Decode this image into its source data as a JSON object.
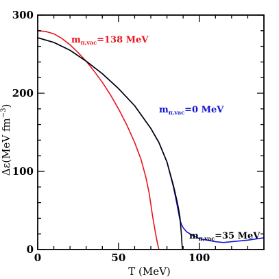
{
  "chart_data": {
    "type": "line",
    "xlabel": "T (MeV)",
    "ylabel_main": "Δε(MeV fm",
    "ylabel_sup": "−3",
    "ylabel_close": ")",
    "xlim": [
      0,
      140
    ],
    "ylim": [
      0,
      300
    ],
    "x_ticks": [
      0,
      50,
      100
    ],
    "y_ticks": [
      0,
      100,
      200,
      300
    ],
    "grid": false,
    "series": [
      {
        "name_base": "m",
        "name_sub": "π,vac",
        "name_value": "=138 MeV",
        "color": "#e8141b",
        "x": [
          0,
          5,
          10,
          15,
          20,
          25,
          30,
          35,
          40,
          45,
          50,
          55,
          60,
          64,
          67,
          69,
          70,
          71,
          72,
          73,
          74,
          75
        ],
        "y": [
          280,
          279,
          276,
          270,
          262,
          252,
          241,
          228,
          214,
          198,
          180,
          160,
          137,
          115,
          92,
          72,
          58,
          44,
          32,
          20,
          9,
          0
        ]
      },
      {
        "name_base": "m",
        "name_sub": "π,vac",
        "name_value": "=0 MeV",
        "color": "#1212d6",
        "x": [
          0,
          10,
          20,
          30,
          40,
          50,
          60,
          70,
          75,
          80,
          84,
          86,
          88,
          89,
          90,
          92,
          95,
          100,
          105,
          110,
          115,
          120,
          130,
          140
        ],
        "y": [
          271,
          265,
          255,
          241,
          225,
          206,
          184,
          155,
          137,
          112,
          80,
          60,
          38,
          32,
          28,
          23,
          19,
          14,
          12,
          10,
          9,
          10,
          12,
          15
        ]
      },
      {
        "name_base": "m",
        "name_sub": "π,vac",
        "name_value": "=35 MeV",
        "color": "#000000",
        "x": [
          0,
          10,
          20,
          30,
          40,
          50,
          60,
          70,
          75,
          80,
          84,
          86,
          87,
          88,
          88.5,
          89,
          89.3,
          89.6
        ],
        "y": [
          271,
          265,
          255,
          241,
          225,
          206,
          184,
          155,
          137,
          112,
          82,
          64,
          54,
          42,
          30,
          17,
          7,
          0
        ]
      }
    ]
  }
}
